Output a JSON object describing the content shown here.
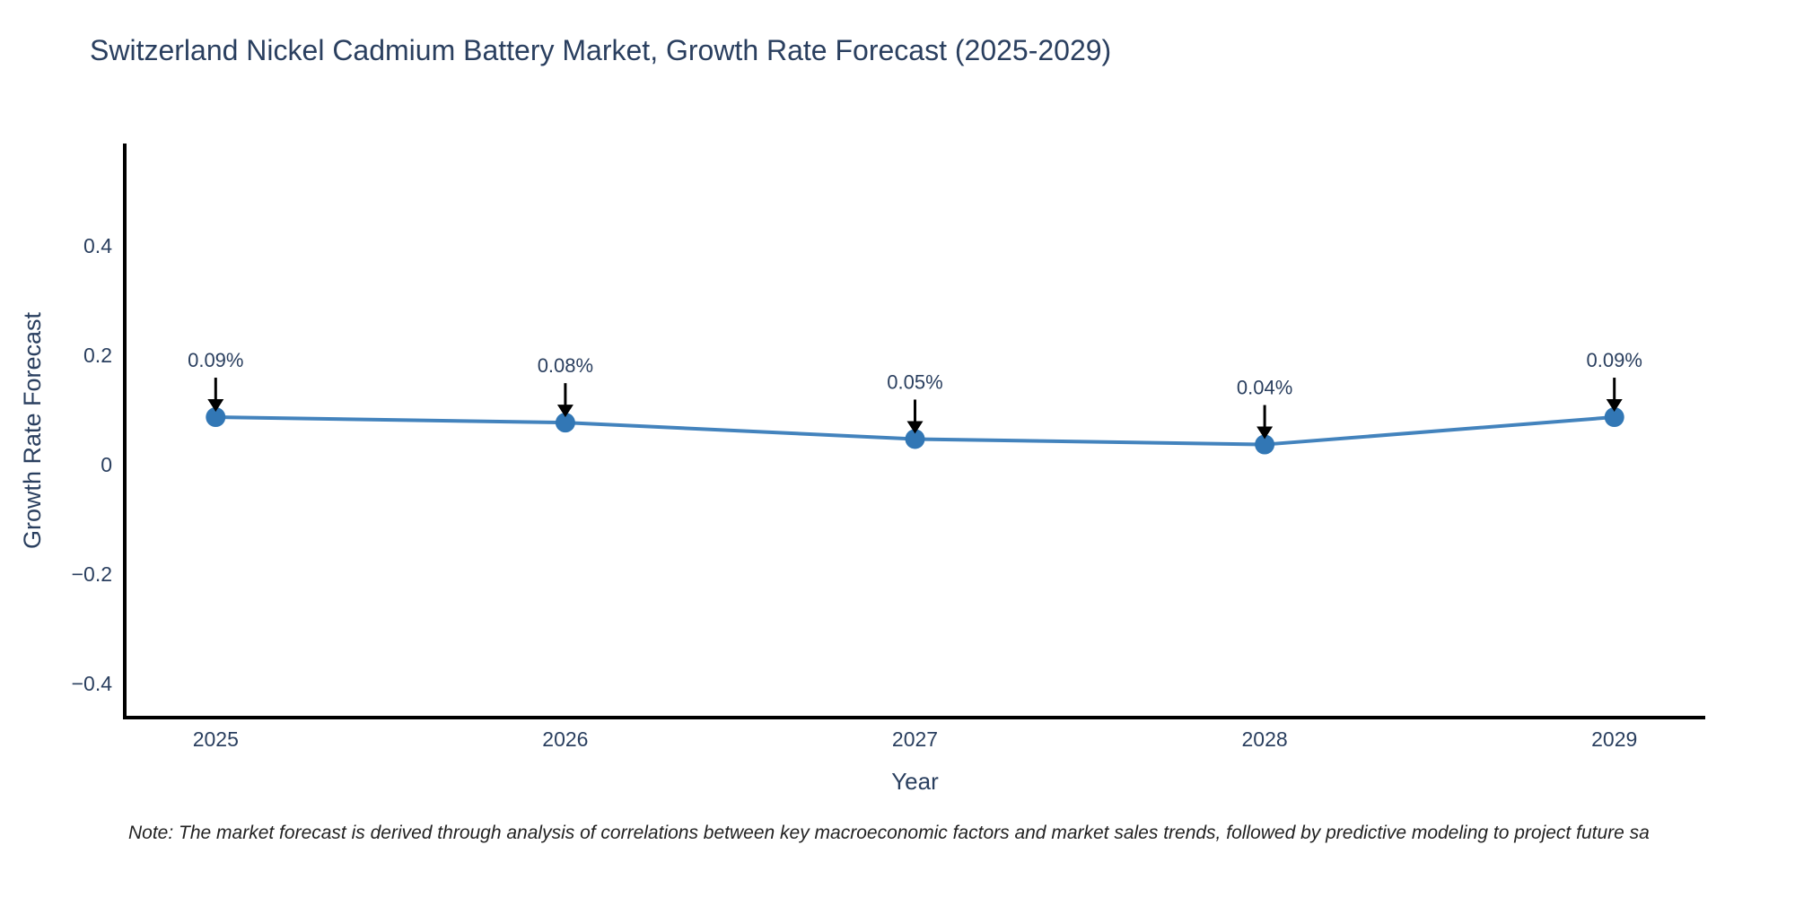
{
  "title": "Switzerland Nickel Cadmium Battery Market, Growth Rate Forecast (2025-2029)",
  "note": "Note: The market forecast is derived through analysis of correlations between key macroeconomic factors and market sales trends, followed by predictive modeling to project future sa",
  "colors": {
    "background": "#ffffff",
    "title_text": "#2a3f5f",
    "axis_text": "#2a3f5f",
    "axis_line": "#000000",
    "line": "#4383bd",
    "marker": "#3277b5",
    "annotation_text": "#2a3f5f",
    "annotation_arrow": "#000000",
    "note_text": "#222222"
  },
  "chart_data": {
    "type": "line",
    "title": "Switzerland Nickel Cadmium Battery Market, Growth Rate Forecast (2025-2029)",
    "xlabel": "Year",
    "ylabel": "Growth Rate Forecast",
    "x": [
      2025,
      2026,
      2027,
      2028,
      2029
    ],
    "values": [
      0.09,
      0.08,
      0.05,
      0.04,
      0.09
    ],
    "point_labels": [
      "0.09%",
      "0.08%",
      "0.05%",
      "0.04%",
      "0.09%"
    ],
    "xtick_labels": [
      "2025",
      "2026",
      "2027",
      "2028",
      "2029"
    ],
    "yticks": [
      0.4,
      0.2,
      0,
      -0.2,
      -0.4
    ],
    "ytick_labels": [
      "0.4",
      "0.2",
      "0",
      "−0.2",
      "−0.4"
    ],
    "xlim": [
      2024.74,
      2029.26
    ],
    "ylim": [
      -0.459,
      0.59
    ],
    "grid": false,
    "legend": "none",
    "marker_style": "circle",
    "annotations_arrows": true
  }
}
